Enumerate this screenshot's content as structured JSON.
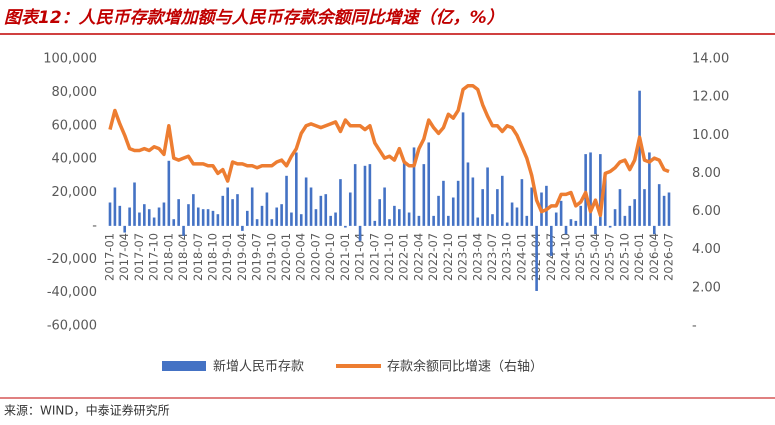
{
  "chart_data": {
    "type": "bar-line",
    "title": "图表12：人民币存款增加额与人民币存款余额同比增速（亿，%）",
    "source": "来源：WIND，中泰证券研究所",
    "categories": [
      "2017-01",
      null,
      null,
      "2017-04",
      null,
      null,
      "2017-07",
      null,
      null,
      "2017-10",
      null,
      null,
      "2018-01",
      null,
      null,
      "2018-04",
      null,
      null,
      "2018-07",
      null,
      null,
      "2018-10",
      null,
      null,
      "2019-01",
      null,
      null,
      "2019-04",
      null,
      null,
      "2019-07",
      null,
      null,
      "2019-10",
      null,
      null,
      "2020-01",
      null,
      null,
      "2020-04",
      null,
      null,
      "2020-07",
      null,
      null,
      "2020-10",
      null,
      null,
      "2021-01",
      null,
      null,
      "2021-04",
      null,
      null,
      "2021-07",
      null,
      null,
      "2021-10",
      null,
      null,
      "2022-01",
      null,
      null,
      "2022-04",
      null,
      null,
      "2022-07",
      null,
      null,
      "2022-10",
      null,
      null,
      "2023-01",
      null,
      null,
      "2023-04",
      null,
      null,
      "2023-07",
      null,
      null,
      "2023-10",
      null,
      null,
      "2024-01",
      null,
      null,
      "2024-04",
      null,
      null,
      "2024-07",
      null,
      null,
      "2024-10",
      null,
      null,
      "2025-01",
      null,
      null,
      "2025-04",
      null,
      null,
      "2025-07",
      null,
      null,
      "2025-10",
      null,
      null,
      "2026-01",
      null,
      null,
      "2026-04",
      null,
      null,
      "2026-07"
    ],
    "series": [
      {
        "name": "新增人民币存款",
        "type": "bar",
        "color": "#4472c4",
        "values": [
          14000,
          23000,
          12000,
          -4000,
          11000,
          26000,
          8000,
          13000,
          10000,
          5000,
          11000,
          14000,
          39000,
          4000,
          16000,
          -6000,
          13000,
          19000,
          11000,
          10000,
          10000,
          9000,
          7000,
          18000,
          23000,
          16000,
          19000,
          -3000,
          9000,
          23000,
          4000,
          12000,
          20000,
          4000,
          11000,
          13000,
          30000,
          8000,
          44000,
          7000,
          29000,
          23000,
          10000,
          18000,
          19000,
          6000,
          8000,
          28000,
          -1000,
          20000,
          37000,
          -9000,
          36000,
          37000,
          3000,
          16000,
          23000,
          4000,
          12000,
          10000,
          39000,
          8000,
          47000,
          6000,
          37000,
          50000,
          6000,
          18000,
          27000,
          6000,
          17000,
          27000,
          68000,
          38000,
          29000,
          5000,
          22000,
          35000,
          7000,
          22000,
          30000,
          2000,
          14000,
          11000,
          28000,
          6000,
          23000,
          -39000,
          20000,
          24000,
          -18000,
          8000,
          15000,
          -5000,
          4000,
          3000,
          12000,
          43000,
          44000,
          -5000,
          43000,
          31000,
          -1000,
          10000,
          22000,
          6000,
          12000,
          16000,
          81000,
          22000,
          44000,
          -5000,
          25000,
          18000,
          20000
        ]
      },
      {
        "name": "存款余额同比增速（右轴）",
        "type": "line",
        "axis": "y2",
        "color": "#ed7d31",
        "values": [
          10.3,
          11.3,
          10.6,
          10.0,
          9.3,
          9.2,
          9.2,
          9.3,
          9.2,
          9.4,
          9.3,
          9.0,
          10.5,
          8.8,
          8.7,
          8.8,
          8.9,
          8.5,
          8.5,
          8.5,
          8.4,
          8.4,
          8.0,
          8.2,
          7.6,
          8.6,
          8.5,
          8.5,
          8.4,
          8.4,
          8.3,
          8.4,
          8.4,
          8.4,
          8.6,
          8.7,
          8.4,
          8.9,
          9.3,
          10.1,
          10.5,
          10.6,
          10.5,
          10.4,
          10.5,
          10.6,
          10.7,
          10.2,
          10.8,
          10.5,
          10.5,
          10.5,
          10.3,
          10.5,
          9.6,
          9.2,
          8.8,
          8.9,
          8.7,
          9.3,
          8.6,
          8.4,
          8.4,
          9.3,
          9.8,
          10.8,
          10.4,
          10.1,
          10.4,
          11.1,
          10.9,
          11.3,
          12.4,
          12.6,
          12.6,
          12.4,
          11.6,
          11.0,
          10.5,
          10.5,
          10.2,
          10.5,
          10.4,
          10.0,
          9.4,
          8.8,
          7.9,
          6.6,
          6.0,
          6.1,
          6.3,
          6.3,
          6.9,
          6.9,
          7.0,
          6.3,
          6.5,
          7.0,
          6.0,
          6.6,
          5.8,
          8.0,
          8.1,
          8.3,
          8.6,
          8.7,
          8.2,
          8.7,
          9.9,
          8.7,
          8.6,
          8.8,
          8.7,
          8.2,
          8.1
        ]
      }
    ],
    "ylim": [
      -60000,
      100000
    ],
    "yticks": [
      {
        "value": -60000,
        "label": "-60,000"
      },
      {
        "value": -40000,
        "label": "-40,000"
      },
      {
        "value": -20000,
        "label": "-20,000"
      },
      {
        "value": 0,
        "label": "-"
      },
      {
        "value": 20000,
        "label": "20,000"
      },
      {
        "value": 40000,
        "label": "40,000"
      },
      {
        "value": 60000,
        "label": "60,000"
      },
      {
        "value": 80000,
        "label": "80,000"
      },
      {
        "value": 100000,
        "label": "100,000"
      }
    ],
    "y2lim": [
      0,
      14
    ],
    "y2ticks": [
      {
        "value": 0,
        "label": "-"
      },
      {
        "value": 2,
        "label": "2.00"
      },
      {
        "value": 4,
        "label": "4.00"
      },
      {
        "value": 6,
        "label": "6.00"
      },
      {
        "value": 8,
        "label": "8.00"
      },
      {
        "value": 10,
        "label": "10.00"
      },
      {
        "value": 12,
        "label": "12.00"
      },
      {
        "value": 14,
        "label": "14.00"
      }
    ],
    "grid": false
  }
}
